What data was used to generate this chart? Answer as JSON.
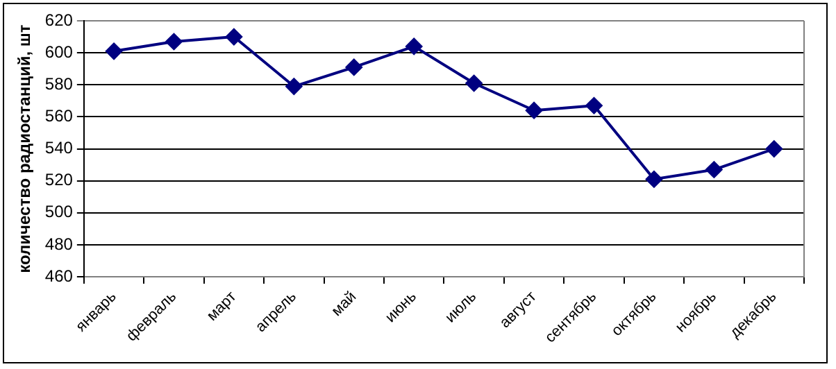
{
  "chart_data": {
    "type": "line",
    "ylabel": "количество радиостанций, шт",
    "categories": [
      "январь",
      "февраль",
      "март",
      "апрель",
      "май",
      "июнь",
      "июль",
      "август",
      "сентябрь",
      "октябрь",
      "ноябрь",
      "декабрь"
    ],
    "series": [
      {
        "color": "#000080",
        "values": [
          601,
          607,
          610,
          579,
          591,
          604,
          581,
          564,
          567,
          521,
          527,
          540
        ]
      }
    ],
    "ylim": [
      460,
      620
    ],
    "yticks": [
      460,
      480,
      500,
      520,
      540,
      560,
      580,
      600,
      620
    ],
    "grid": "y",
    "legend": false,
    "marker": "diamond",
    "line_style": "solid"
  }
}
